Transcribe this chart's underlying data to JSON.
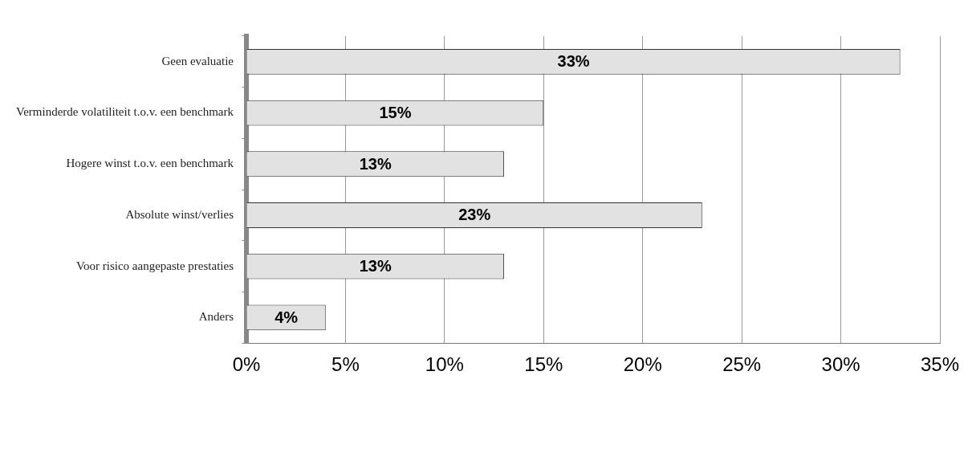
{
  "chart_data": {
    "type": "bar",
    "orientation": "horizontal",
    "categories": [
      "Geen evaluatie",
      "Verminderde volatiliteit t.o.v. een benchmark",
      "Hogere winst t.o.v. een benchmark",
      "Absolute winst/verlies",
      "Voor risico aangepaste prestaties",
      "Anders"
    ],
    "values": [
      33,
      15,
      13,
      23,
      13,
      4
    ],
    "value_labels": [
      "33%",
      "15%",
      "13%",
      "23%",
      "13%",
      "4%"
    ],
    "color": "#e2e2e2",
    "xlim": [
      0,
      35
    ],
    "xticks": [
      {
        "value": 0,
        "label": "0%"
      },
      {
        "value": 5,
        "label": "5%"
      },
      {
        "value": 10,
        "label": "10%"
      },
      {
        "value": 15,
        "label": "15%"
      },
      {
        "value": 20,
        "label": "20%"
      },
      {
        "value": 25,
        "label": "25%"
      },
      {
        "value": 30,
        "label": "30%"
      },
      {
        "value": 35,
        "label": "35%"
      }
    ],
    "grid": "x",
    "legend": false
  }
}
